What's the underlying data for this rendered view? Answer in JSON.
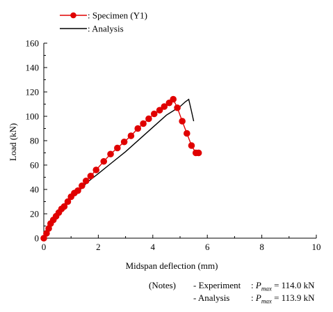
{
  "chart_data": {
    "type": "line",
    "xlabel": "Midspan deflection  (mm)",
    "ylabel": "Load  (kN)",
    "xlim": [
      0,
      10
    ],
    "ylim": [
      0,
      160
    ],
    "xticks": [
      0,
      2,
      4,
      6,
      8,
      10
    ],
    "yticks": [
      0,
      20,
      40,
      60,
      80,
      100,
      120,
      140,
      160
    ],
    "grid": false,
    "legend_position": "top-left",
    "series": [
      {
        "name": ": Specimen (Y1)",
        "style": "line-with-markers",
        "color": "#e00000",
        "x": [
          0.0,
          0.1,
          0.18,
          0.25,
          0.35,
          0.45,
          0.55,
          0.65,
          0.75,
          0.88,
          1.0,
          1.12,
          1.25,
          1.4,
          1.55,
          1.72,
          1.92,
          2.2,
          2.45,
          2.7,
          2.95,
          3.2,
          3.45,
          3.65,
          3.85,
          4.05,
          4.25,
          4.42,
          4.6,
          4.75,
          4.9,
          5.08,
          5.25,
          5.42,
          5.58,
          5.68
        ],
        "y": [
          0,
          4,
          8,
          12,
          15,
          18,
          21,
          24,
          26,
          30,
          34,
          37,
          39,
          43,
          47,
          51,
          56,
          63,
          69,
          74,
          79,
          84,
          90,
          94,
          98,
          102,
          105,
          108,
          111,
          114,
          107,
          96,
          86,
          76,
          70,
          70
        ]
      },
      {
        "name": ": Analysis",
        "style": "line",
        "color": "#000000",
        "x": [
          0.0,
          0.1,
          0.2,
          0.3,
          0.4,
          0.5,
          0.6,
          0.8,
          1.0,
          1.3,
          1.6,
          2.0,
          2.5,
          3.0,
          3.5,
          4.0,
          4.5,
          5.0,
          5.2,
          5.32,
          5.42,
          5.5
        ],
        "y": [
          0,
          5,
          10,
          14,
          18,
          21,
          24,
          29,
          33,
          39,
          46,
          53,
          62,
          71,
          81,
          91,
          101,
          108,
          112,
          113.9,
          104,
          96
        ]
      }
    ]
  },
  "notes": {
    "label": "(Notes)",
    "rows": [
      {
        "name": "- Experiment",
        "sep": ": ",
        "p": "P",
        "sub": "max",
        "value": " = 114.0 kN"
      },
      {
        "name": "- Analysis",
        "sep": ": ",
        "p": "P",
        "sub": "max",
        "value": " = 113.9 kN"
      }
    ]
  }
}
